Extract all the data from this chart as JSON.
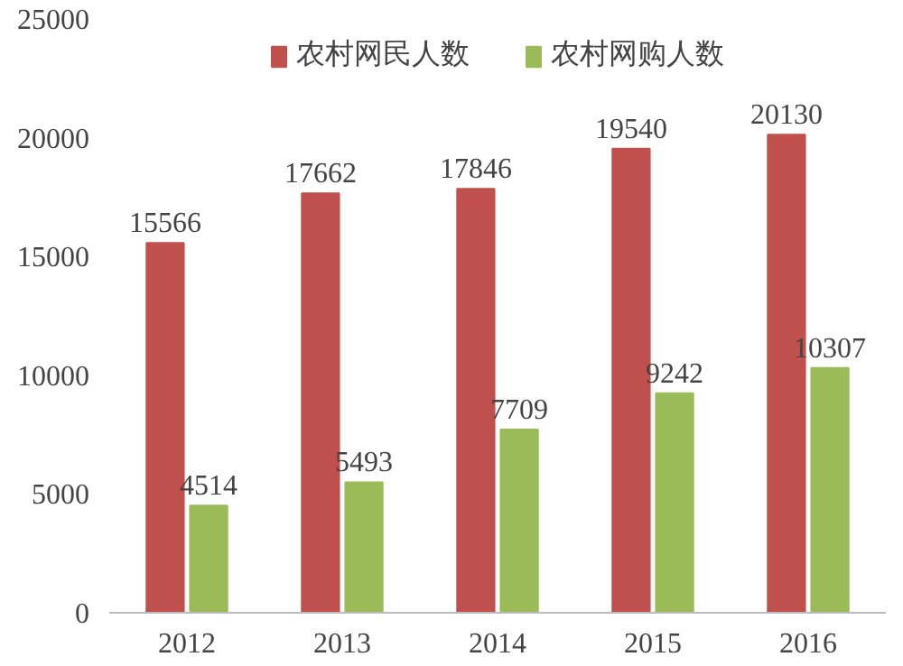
{
  "chart_data": {
    "type": "bar",
    "categories": [
      "2012",
      "2013",
      "2014",
      "2015",
      "2016"
    ],
    "series": [
      {
        "name": "农村网民人数",
        "color": "#c0504d",
        "values": [
          15566,
          17662,
          17846,
          19540,
          20130
        ]
      },
      {
        "name": "农村网购人数",
        "color": "#9bbb59",
        "values": [
          4514,
          5493,
          7709,
          9242,
          10307
        ]
      }
    ],
    "ylim": [
      0,
      25000
    ],
    "yticks": [
      0,
      5000,
      10000,
      15000,
      20000,
      25000
    ],
    "grid": false,
    "legend": "top",
    "data_labels": true
  }
}
